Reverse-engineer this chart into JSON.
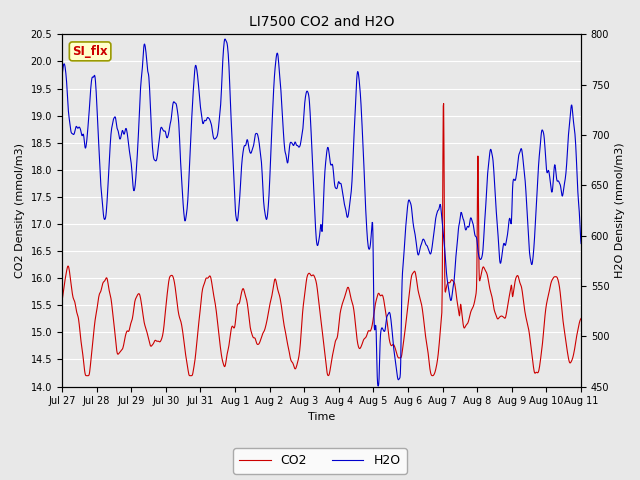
{
  "title": "LI7500 CO2 and H2O",
  "xlabel": "Time",
  "ylabel_left": "CO2 Density (mmol/m3)",
  "ylabel_right": "H2O Density (mmol/m3)",
  "ylim_left": [
    14.0,
    20.5
  ],
  "ylim_right": [
    450,
    800
  ],
  "co2_color": "#cc0000",
  "h2o_color": "#0000cc",
  "co2_label": "CO2",
  "h2o_label": "H2O",
  "annotation_text": "SI_flx",
  "annotation_bg": "#ffffcc",
  "annotation_border": "#999900",
  "annotation_text_color": "#cc0000",
  "xtick_labels": [
    "Jul 27",
    "Jul 28",
    "Jul 29",
    "Jul 30",
    "Jul 31",
    "Aug 1",
    "Aug 2",
    "Aug 3",
    "Aug 4",
    "Aug 5",
    "Aug 6",
    "Aug 7",
    "Aug 8",
    "Aug 9",
    "Aug 10",
    "Aug 11"
  ],
  "background_color": "#e8e8e8",
  "grid_color": "#ffffff",
  "linewidth": 0.8,
  "n_points": 1440,
  "yticks_left": [
    14.0,
    14.5,
    15.0,
    15.5,
    16.0,
    16.5,
    17.0,
    17.5,
    18.0,
    18.5,
    19.0,
    19.5,
    20.0,
    20.5
  ],
  "yticks_right": [
    450,
    500,
    550,
    600,
    650,
    700,
    750,
    800
  ],
  "title_fontsize": 10,
  "label_fontsize": 8,
  "tick_fontsize": 7
}
